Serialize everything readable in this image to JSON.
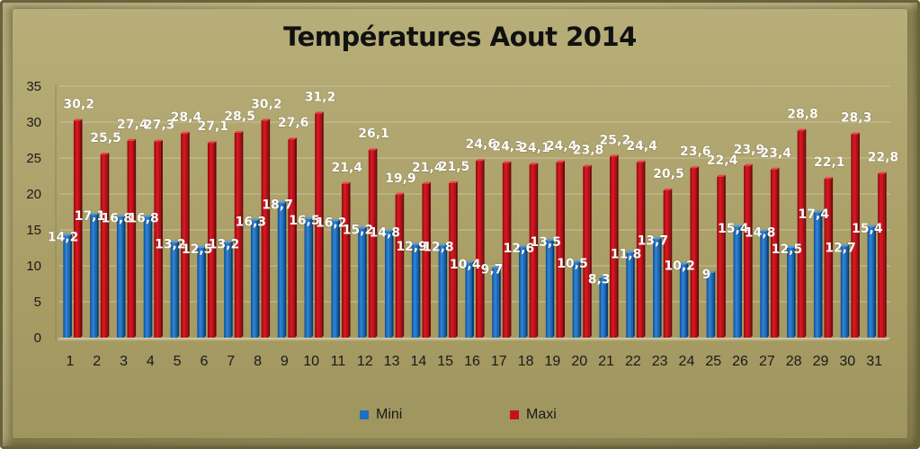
{
  "chart_data": {
    "type": "bar",
    "title": "Températures Aout 2014",
    "xlabel": "",
    "ylabel": "",
    "ylim": [
      0,
      35
    ],
    "yticks": [
      0,
      5,
      10,
      15,
      20,
      25,
      30,
      35
    ],
    "grid": true,
    "legend_position": "bottom",
    "categories": [
      "1",
      "2",
      "3",
      "4",
      "5",
      "6",
      "7",
      "8",
      "9",
      "10",
      "11",
      "12",
      "13",
      "14",
      "15",
      "16",
      "17",
      "18",
      "19",
      "20",
      "21",
      "22",
      "23",
      "24",
      "25",
      "26",
      "27",
      "28",
      "29",
      "30",
      "31"
    ],
    "series": [
      {
        "name": "Mini",
        "color": "#1f6fc0",
        "values": [
          14.2,
          17.1,
          16.8,
          16.8,
          13.2,
          12.5,
          13.2,
          16.3,
          18.7,
          16.5,
          16.2,
          15.2,
          14.8,
          12.9,
          12.8,
          10.4,
          9.7,
          12.6,
          13.5,
          10.5,
          8.3,
          11.8,
          13.7,
          10.2,
          9,
          15.4,
          14.8,
          12.5,
          17.4,
          12.7,
          15.4
        ],
        "labels": [
          "14,2",
          "17,1",
          "16,8",
          "16,8",
          "13,2",
          "12,5",
          "13,2",
          "16,3",
          "18,7",
          "16,5",
          "16,2",
          "15,2",
          "14,8",
          "12,9",
          "12,8",
          "10,4",
          "9,7",
          "12,6",
          "13,5",
          "10,5",
          "8,3",
          "11,8",
          "13,7",
          "10,2",
          "9",
          "15,4",
          "14,8",
          "12,5",
          "17,4",
          "12,7",
          "15,4"
        ]
      },
      {
        "name": "Maxi",
        "color": "#c8101a",
        "values": [
          30.2,
          25.5,
          27.4,
          27.3,
          28.4,
          27.1,
          28.5,
          30.2,
          27.6,
          31.2,
          21.4,
          26.1,
          19.9,
          21.4,
          21.5,
          24.6,
          24.3,
          24.1,
          24.4,
          23.8,
          25.2,
          24.4,
          20.5,
          23.6,
          22.4,
          23.9,
          23.4,
          28.8,
          22.1,
          28.3,
          22.8
        ],
        "labels": [
          "30,2",
          "25,5",
          "27,4",
          "27,3",
          "28,4",
          "27,1",
          "28,5",
          "30,2",
          "27,6",
          "31,2",
          "21,4",
          "26,1",
          "19,9",
          "21,4",
          "21,5",
          "24,6",
          "24,3",
          "24,1",
          "24,4",
          "23,8",
          "25,2",
          "24,4",
          "20,5",
          "23,6",
          "22,4",
          "23,9",
          "23,4",
          "28,8",
          "22,1",
          "28,3",
          "22,8"
        ]
      }
    ]
  }
}
